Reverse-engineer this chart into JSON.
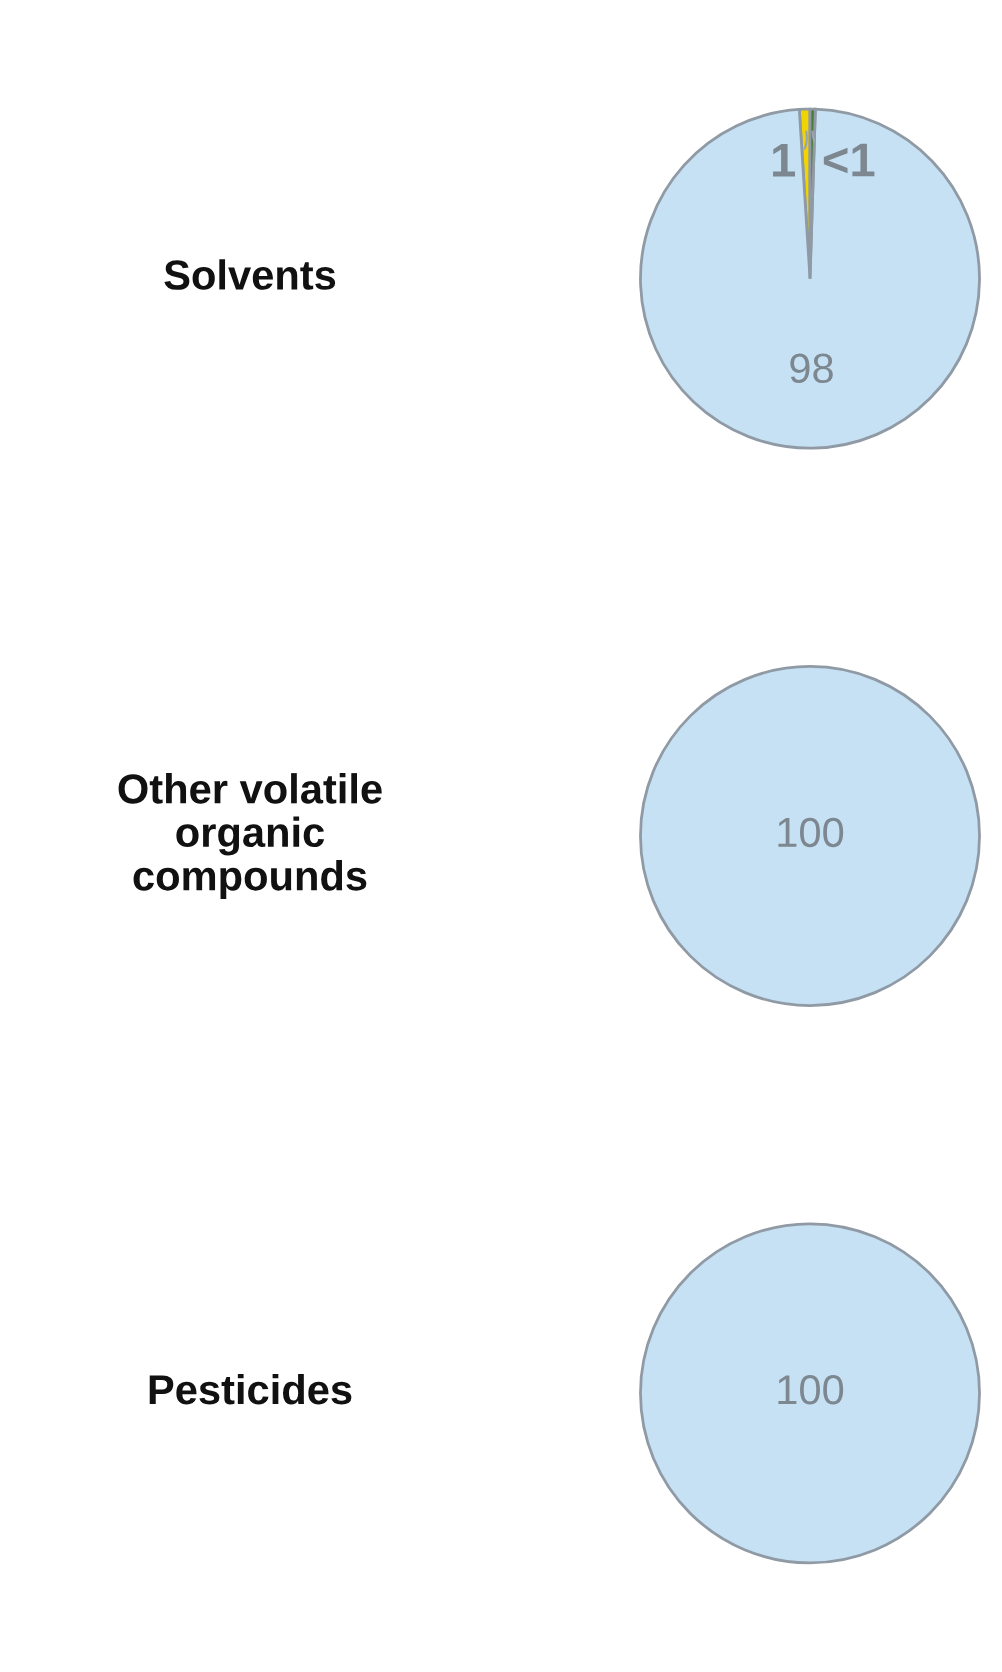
{
  "chart_data": [
    {
      "type": "pie",
      "title": "Solvents",
      "categories": [
        null,
        null,
        null
      ],
      "values": [
        1,
        98,
        0.5
      ],
      "value_labels": [
        "1",
        "98",
        "<1"
      ],
      "colors": [
        "#f2d400",
        "#c6e0f4",
        "#4b7a3a"
      ]
    },
    {
      "type": "pie",
      "title": "Other volatile\norganic\ncompounds",
      "categories": [
        null
      ],
      "values": [
        100
      ],
      "value_labels": [
        "100"
      ],
      "colors": [
        "#c6e0f4"
      ]
    },
    {
      "type": "pie",
      "title": "Pesticides",
      "categories": [
        null
      ],
      "values": [
        100
      ],
      "value_labels": [
        "100"
      ],
      "colors": [
        "#c6e0f4"
      ]
    }
  ]
}
